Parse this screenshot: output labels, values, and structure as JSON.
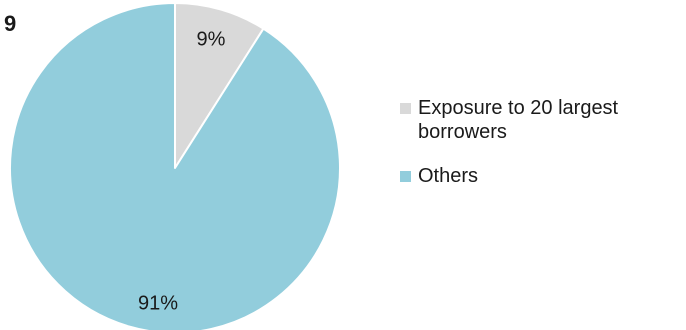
{
  "heading": "9",
  "chart_data": {
    "type": "pie",
    "title": "",
    "start_angle_deg": 0,
    "direction": "clockwise",
    "legend_position": "right",
    "slices": [
      {
        "name": "Exposure to 20 largest borrowers",
        "value": 9,
        "label": "9%",
        "color": "#d9d9d9"
      },
      {
        "name": "Others",
        "value": 91,
        "label": "91%",
        "color": "#92cddc"
      }
    ]
  }
}
